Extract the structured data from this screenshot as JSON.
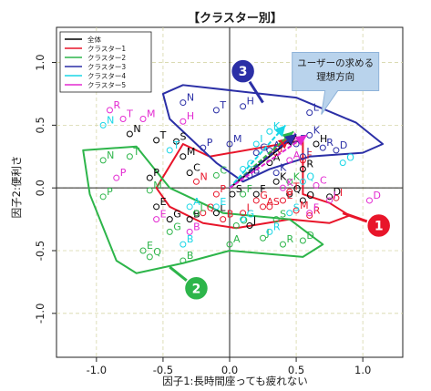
{
  "chart_data": {
    "type": "scatter",
    "title": "【クラスター別】",
    "xlabel": "因子1:長時間座っても疲れない",
    "ylabel": "因子2:便利さ",
    "xlim": [
      -1.3,
      1.3
    ],
    "ylim": [
      -1.35,
      1.28
    ],
    "xticks": [
      "-1.0",
      "-0.5",
      "0.0",
      "0.5",
      "1.0"
    ],
    "yticks": [
      "-1.0",
      "-0.5",
      "0.0",
      "0.5",
      "1.0"
    ],
    "xtick_values": [
      -1.0,
      -0.5,
      0.0,
      0.5,
      1.0
    ],
    "ytick_values": [
      -1.0,
      -0.5,
      0.0,
      0.5,
      1.0
    ],
    "grid": true,
    "legend_position": "top-left",
    "series": [
      {
        "name": "全体",
        "color": "#000000",
        "arrow": [
          0.5,
          0.42
        ],
        "points": [
          {
            "x": -0.75,
            "y": 0.43,
            "t": "N"
          },
          {
            "x": -0.55,
            "y": 0.38,
            "t": "T"
          },
          {
            "x": -0.4,
            "y": 0.37,
            "t": "S"
          },
          {
            "x": -0.6,
            "y": 0.08,
            "t": "P"
          },
          {
            "x": -0.35,
            "y": 0.25,
            "t": "M"
          },
          {
            "x": -0.3,
            "y": 0.12,
            "t": "C"
          },
          {
            "x": -0.55,
            "y": -0.15,
            "t": "E"
          },
          {
            "x": -0.45,
            "y": -0.25,
            "t": "G"
          },
          {
            "x": -0.3,
            "y": -0.25,
            "t": "B"
          },
          {
            "x": -0.1,
            "y": -0.2,
            "t": "L"
          },
          {
            "x": 0.02,
            "y": -0.05,
            "t": "S"
          },
          {
            "x": 0.2,
            "y": -0.05,
            "t": "F"
          },
          {
            "x": 0.45,
            "y": -0.05,
            "t": "Q"
          },
          {
            "x": 0.35,
            "y": 0.05,
            "t": "K"
          },
          {
            "x": 0.75,
            "y": -0.07,
            "t": "D"
          },
          {
            "x": 0.55,
            "y": -0.1,
            "t": "O"
          },
          {
            "x": 0.3,
            "y": 0.2,
            "t": "A"
          },
          {
            "x": 0.55,
            "y": 0.15,
            "t": "R"
          },
          {
            "x": 0.65,
            "y": 0.35,
            "t": "H"
          },
          {
            "x": 0.15,
            "y": -0.3,
            "t": "J"
          }
        ]
      },
      {
        "name": "クラスター1",
        "color": "#e8152a",
        "arrow": [
          0.45,
          0.4
        ],
        "points": [
          {
            "x": -0.25,
            "y": 0.05,
            "t": "N"
          },
          {
            "x": -0.1,
            "y": -0.05,
            "t": "P"
          },
          {
            "x": -0.05,
            "y": -0.25,
            "t": "B"
          },
          {
            "x": 0.1,
            "y": -0.2,
            "t": "L"
          },
          {
            "x": 0.2,
            "y": -0.1,
            "t": "G"
          },
          {
            "x": 0.3,
            "y": -0.15,
            "t": "S"
          },
          {
            "x": 0.4,
            "y": -0.1,
            "t": "E"
          },
          {
            "x": 0.5,
            "y": -0.18,
            "t": "M"
          },
          {
            "x": 0.6,
            "y": -0.22,
            "t": "R"
          },
          {
            "x": 0.35,
            "y": 0.28,
            "t": "J"
          },
          {
            "x": 0.55,
            "y": 0.22,
            "t": "F"
          },
          {
            "x": 0.8,
            "y": -0.08,
            "t": "I"
          },
          {
            "x": 0.45,
            "y": -0.03,
            "t": "T"
          },
          {
            "x": 0.25,
            "y": -0.15,
            "t": "A"
          },
          {
            "x": -0.2,
            "y": -0.2,
            "t": "Q"
          }
        ]
      },
      {
        "name": "クラスター2",
        "color": "#2db54a",
        "arrow": [
          0.48,
          0.45
        ],
        "points": [
          {
            "x": -0.95,
            "y": 0.22,
            "t": "N"
          },
          {
            "x": -0.75,
            "y": 0.25,
            "t": "T"
          },
          {
            "x": -0.95,
            "y": -0.07,
            "t": "P"
          },
          {
            "x": -0.6,
            "y": -0.02,
            "t": "M"
          },
          {
            "x": -0.65,
            "y": -0.5,
            "t": "E"
          },
          {
            "x": -0.6,
            "y": -0.55,
            "t": "Q"
          },
          {
            "x": -0.35,
            "y": -0.58,
            "t": "B"
          },
          {
            "x": -0.45,
            "y": -0.35,
            "t": "G"
          },
          {
            "x": -0.25,
            "y": -0.2,
            "t": "L"
          },
          {
            "x": 0.0,
            "y": -0.45,
            "t": "A"
          },
          {
            "x": 0.25,
            "y": -0.4,
            "t": "J"
          },
          {
            "x": 0.4,
            "y": -0.45,
            "t": "R"
          },
          {
            "x": 0.55,
            "y": -0.42,
            "t": "D"
          },
          {
            "x": 0.35,
            "y": -0.25,
            "t": "S"
          },
          {
            "x": 0.1,
            "y": -0.05,
            "t": "F"
          },
          {
            "x": -0.1,
            "y": 0.1,
            "t": "C"
          },
          {
            "x": 0.45,
            "y": 0.05,
            "t": "K"
          },
          {
            "x": 0.05,
            "y": -0.3,
            "t": "O"
          }
        ]
      },
      {
        "name": "クラスター3",
        "color": "#2b2fa6",
        "arrow": [
          0.5,
          0.43
        ],
        "points": [
          {
            "x": -0.35,
            "y": 0.68,
            "t": "N"
          },
          {
            "x": -0.1,
            "y": 0.62,
            "t": "T"
          },
          {
            "x": 0.1,
            "y": 0.65,
            "t": "H"
          },
          {
            "x": -0.2,
            "y": 0.32,
            "t": "P"
          },
          {
            "x": 0.0,
            "y": 0.35,
            "t": "M"
          },
          {
            "x": 0.2,
            "y": 0.28,
            "t": "G"
          },
          {
            "x": 0.15,
            "y": 0.1,
            "t": "B"
          },
          {
            "x": 0.35,
            "y": 0.12,
            "t": "K"
          },
          {
            "x": 0.6,
            "y": 0.42,
            "t": "K"
          },
          {
            "x": 0.7,
            "y": 0.32,
            "t": "R"
          },
          {
            "x": 0.8,
            "y": 0.3,
            "t": "D"
          },
          {
            "x": 0.55,
            "y": 0.25,
            "t": "I"
          },
          {
            "x": 0.5,
            "y": 0.35,
            "t": "F"
          },
          {
            "x": 0.3,
            "y": 0.3,
            "t": "A"
          },
          {
            "x": 0.6,
            "y": 0.6,
            "t": "L"
          }
        ]
      },
      {
        "name": "クラスター4",
        "color": "#18d6e6",
        "arrow": [
          0.42,
          0.5
        ],
        "points": [
          {
            "x": -0.95,
            "y": 0.5,
            "t": "N"
          },
          {
            "x": -0.45,
            "y": 0.3,
            "t": "T"
          },
          {
            "x": -0.3,
            "y": -0.15,
            "t": "A"
          },
          {
            "x": -0.35,
            "y": -0.45,
            "t": "B"
          },
          {
            "x": -0.1,
            "y": -0.15,
            "t": "E"
          },
          {
            "x": 0.1,
            "y": -0.25,
            "t": "G"
          },
          {
            "x": 0.3,
            "y": -0.35,
            "t": "R"
          },
          {
            "x": 0.45,
            "y": -0.2,
            "t": "S"
          },
          {
            "x": 0.55,
            "y": 0.05,
            "t": "Q"
          },
          {
            "x": 0.1,
            "y": 0.15,
            "t": "C"
          },
          {
            "x": 0.3,
            "y": 0.45,
            "t": "K"
          },
          {
            "x": 0.2,
            "y": 0.35,
            "t": "I"
          },
          {
            "x": 0.85,
            "y": 0.2,
            "t": "O"
          }
        ]
      },
      {
        "name": "クラスター5",
        "color": "#e32ad1",
        "arrow": [
          0.58,
          0.42
        ],
        "points": [
          {
            "x": -0.9,
            "y": 0.62,
            "t": "R"
          },
          {
            "x": -0.8,
            "y": 0.55,
            "t": "T"
          },
          {
            "x": -0.65,
            "y": 0.55,
            "t": "M"
          },
          {
            "x": -0.35,
            "y": 0.53,
            "t": "H"
          },
          {
            "x": -0.85,
            "y": 0.08,
            "t": "P"
          },
          {
            "x": -0.55,
            "y": -0.25,
            "t": "E"
          },
          {
            "x": -0.3,
            "y": -0.35,
            "t": "B"
          },
          {
            "x": 0.45,
            "y": 0.22,
            "t": "A"
          },
          {
            "x": 0.65,
            "y": 0.02,
            "t": "C"
          },
          {
            "x": 0.75,
            "y": -0.1,
            "t": "I"
          },
          {
            "x": 1.05,
            "y": -0.1,
            "t": "D"
          },
          {
            "x": 0.4,
            "y": 0.0,
            "t": "K"
          },
          {
            "x": 0.6,
            "y": -0.2,
            "t": "F"
          },
          {
            "x": 0.45,
            "y": 0.37,
            "t": "L"
          }
        ]
      }
    ],
    "regions": [
      {
        "label": "1",
        "color": "#e8152a",
        "outline": [
          [
            -0.55,
            0.0
          ],
          [
            -0.35,
            0.35
          ],
          [
            -0.15,
            0.25
          ],
          [
            0.55,
            0.38
          ],
          [
            0.55,
            -0.05
          ],
          [
            0.75,
            -0.12
          ],
          [
            0.9,
            -0.22
          ],
          [
            0.75,
            -0.28
          ],
          [
            0.45,
            -0.25
          ],
          [
            0.05,
            -0.32
          ],
          [
            -0.2,
            -0.28
          ],
          [
            -0.45,
            -0.15
          ]
        ]
      },
      {
        "label": "2",
        "color": "#2db54a",
        "outline": [
          [
            -1.1,
            0.3
          ],
          [
            -0.7,
            0.33
          ],
          [
            -0.45,
            0.0
          ],
          [
            -0.05,
            -0.2
          ],
          [
            0.45,
            -0.25
          ],
          [
            0.7,
            -0.45
          ],
          [
            0.55,
            -0.55
          ],
          [
            0.0,
            -0.5
          ],
          [
            -0.35,
            -0.6
          ],
          [
            -0.7,
            -0.68
          ],
          [
            -0.85,
            -0.58
          ],
          [
            -1.05,
            -0.05
          ]
        ]
      },
      {
        "label": "3",
        "color": "#2b2fa6",
        "outline": [
          [
            -0.5,
            0.75
          ],
          [
            -0.35,
            0.82
          ],
          [
            0.5,
            0.72
          ],
          [
            0.95,
            0.52
          ],
          [
            1.15,
            0.35
          ],
          [
            1.0,
            0.28
          ],
          [
            0.6,
            0.25
          ],
          [
            0.3,
            0.15
          ],
          [
            0.1,
            0.05
          ],
          [
            -0.1,
            0.2
          ],
          [
            -0.45,
            0.55
          ]
        ]
      }
    ],
    "annotations": [
      {
        "text": "ユーザーの求める",
        "x": 0.68,
        "y": 0.98
      },
      {
        "text": "理想方向",
        "x": 0.68,
        "y": 0.87
      }
    ]
  }
}
